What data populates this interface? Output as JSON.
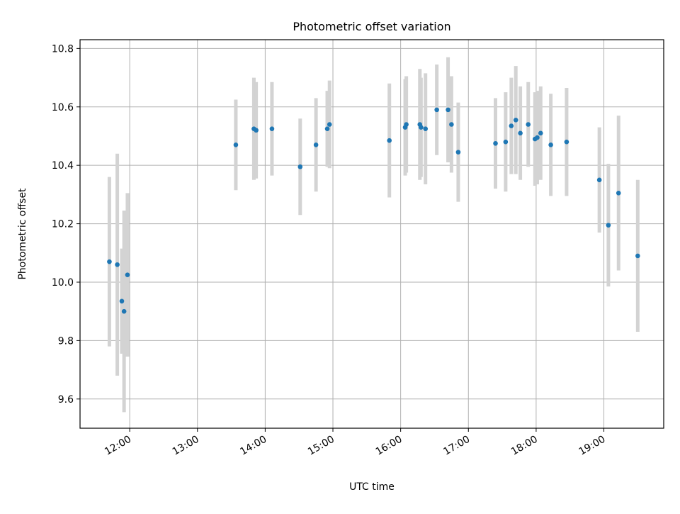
{
  "chart_data": {
    "type": "scatter",
    "title": "Photometric offset variation",
    "xlabel": "UTC time",
    "ylabel": "Photometric offset",
    "x_is_time": true,
    "xlim": [
      "11:16",
      "19:53"
    ],
    "ylim": [
      9.5,
      10.83
    ],
    "x_ticks": [
      "12:00",
      "13:00",
      "14:00",
      "15:00",
      "16:00",
      "17:00",
      "18:00",
      "19:00"
    ],
    "y_ticks": [
      9.6,
      9.8,
      10.0,
      10.2,
      10.4,
      10.6,
      10.8
    ],
    "grid": true,
    "legend": "none",
    "colors": {
      "points": "#1f77b4",
      "error_bars": "#d3d3d3",
      "grid": "#b0b0b0"
    },
    "points": [
      {
        "x": "11:42",
        "y": 10.07,
        "err": 0.29
      },
      {
        "x": "11:49",
        "y": 10.06,
        "err": 0.38
      },
      {
        "x": "11:53",
        "y": 9.935,
        "err": 0.18
      },
      {
        "x": "11:55",
        "y": 9.9,
        "err": 0.345
      },
      {
        "x": "11:58",
        "y": 10.025,
        "err": 0.28
      },
      {
        "x": "13:34",
        "y": 10.47,
        "err": 0.155
      },
      {
        "x": "13:50",
        "y": 10.525,
        "err": 0.175
      },
      {
        "x": "13:52",
        "y": 10.52,
        "err": 0.165
      },
      {
        "x": "14:06",
        "y": 10.525,
        "err": 0.16
      },
      {
        "x": "14:31",
        "y": 10.395,
        "err": 0.165
      },
      {
        "x": "14:45",
        "y": 10.47,
        "err": 0.16
      },
      {
        "x": "14:55",
        "y": 10.525,
        "err": 0.13
      },
      {
        "x": "14:57",
        "y": 10.54,
        "err": 0.15
      },
      {
        "x": "15:50",
        "y": 10.485,
        "err": 0.195
      },
      {
        "x": "16:04",
        "y": 10.53,
        "err": 0.165
      },
      {
        "x": "16:05",
        "y": 10.54,
        "err": 0.165
      },
      {
        "x": "16:17",
        "y": 10.54,
        "err": 0.19
      },
      {
        "x": "16:18",
        "y": 10.53,
        "err": 0.17
      },
      {
        "x": "16:22",
        "y": 10.525,
        "err": 0.19
      },
      {
        "x": "16:32",
        "y": 10.59,
        "err": 0.155
      },
      {
        "x": "16:42",
        "y": 10.59,
        "err": 0.18
      },
      {
        "x": "16:45",
        "y": 10.54,
        "err": 0.165
      },
      {
        "x": "16:51",
        "y": 10.445,
        "err": 0.17
      },
      {
        "x": "17:24",
        "y": 10.475,
        "err": 0.155
      },
      {
        "x": "17:33",
        "y": 10.48,
        "err": 0.17
      },
      {
        "x": "17:38",
        "y": 10.535,
        "err": 0.165
      },
      {
        "x": "17:42",
        "y": 10.555,
        "err": 0.185
      },
      {
        "x": "17:46",
        "y": 10.51,
        "err": 0.16
      },
      {
        "x": "17:53",
        "y": 10.54,
        "err": 0.145
      },
      {
        "x": "17:59",
        "y": 10.49,
        "err": 0.16
      },
      {
        "x": "18:01",
        "y": 10.495,
        "err": 0.16
      },
      {
        "x": "18:04",
        "y": 10.51,
        "err": 0.16
      },
      {
        "x": "18:13",
        "y": 10.47,
        "err": 0.175
      },
      {
        "x": "18:27",
        "y": 10.48,
        "err": 0.185
      },
      {
        "x": "18:56",
        "y": 10.35,
        "err": 0.18
      },
      {
        "x": "19:04",
        "y": 10.195,
        "err": 0.21
      },
      {
        "x": "19:13",
        "y": 10.305,
        "err": 0.265
      },
      {
        "x": "19:30",
        "y": 10.09,
        "err": 0.26
      }
    ]
  }
}
